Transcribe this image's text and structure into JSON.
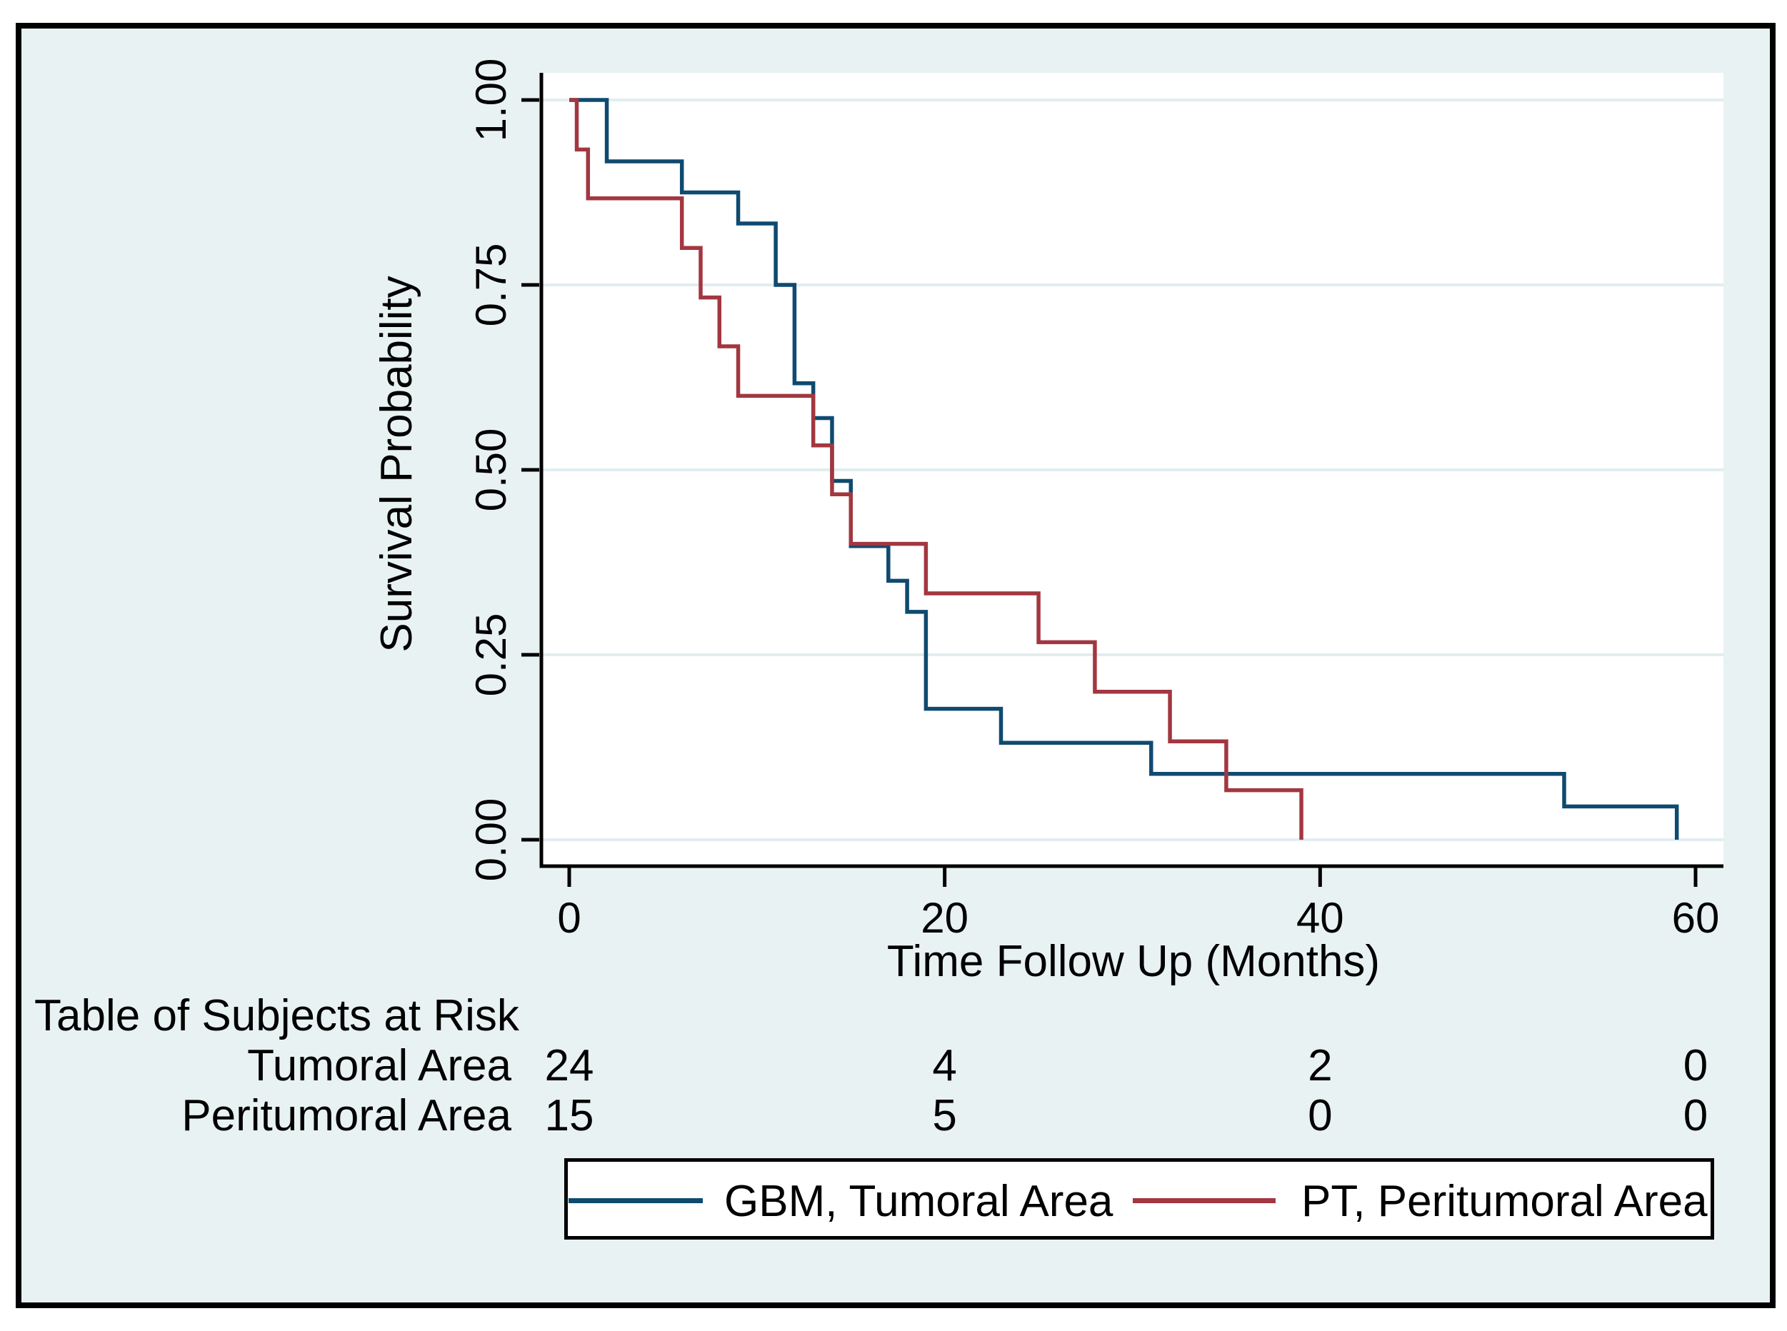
{
  "figure": {
    "background_color": "#E9F2F2",
    "plot_background_color": "#FFFFFF",
    "grid_color": "#E2EDEF",
    "axis_color": "#000000"
  },
  "y_axis": {
    "title": "Survival Probability",
    "tick_labels": [
      "1.00",
      "0.75",
      "0.50",
      "0.25",
      "0.00"
    ],
    "tick_values": [
      1.0,
      0.75,
      0.5,
      0.25,
      0.0
    ]
  },
  "x_axis": {
    "title": "Time Follow Up (Months)",
    "tick_labels": [
      "0",
      "20",
      "40",
      "60"
    ],
    "tick_values": [
      0,
      20,
      40,
      60
    ]
  },
  "risk_table": {
    "title": "Table of Subjects at Risk",
    "rows": [
      {
        "label": "Tumoral Area",
        "counts": [
          "24",
          "4",
          "2",
          "0"
        ]
      },
      {
        "label": "Peritumoral Area",
        "counts": [
          "15",
          "5",
          "0",
          "0"
        ]
      }
    ]
  },
  "legend": {
    "entries": [
      {
        "label": "GBM, Tumoral Area",
        "color": "#0F4A70"
      },
      {
        "label": "PT, Peritumoral Area",
        "color": "#A23740"
      }
    ]
  },
  "chart_data": {
    "type": "line",
    "subtype": "kaplan-meier-step",
    "title": "",
    "xlabel": "Time Follow Up (Months)",
    "ylabel": "Survival Probability",
    "xlim": [
      0,
      62
    ],
    "ylim": [
      0.0,
      1.0
    ],
    "x_ticks": [
      0,
      20,
      40,
      60
    ],
    "y_ticks": [
      0.0,
      0.25,
      0.5,
      0.75,
      1.0
    ],
    "grid": "horizontal",
    "legend_position": "bottom",
    "series": [
      {
        "name": "GBM, Tumoral Area",
        "color": "#0F4A70",
        "n_at_risk": [
          24,
          4,
          2,
          0
        ],
        "steps": [
          [
            0,
            1.0
          ],
          [
            2,
            0.917
          ],
          [
            6,
            0.875
          ],
          [
            9,
            0.833
          ],
          [
            11,
            0.75
          ],
          [
            12,
            0.617
          ],
          [
            13,
            0.57
          ],
          [
            14,
            0.485
          ],
          [
            15,
            0.397
          ],
          [
            17,
            0.35
          ],
          [
            18,
            0.308
          ],
          [
            19,
            0.177
          ],
          [
            23,
            0.131
          ],
          [
            31,
            0.089
          ],
          [
            53,
            0.045
          ],
          [
            59,
            0.0
          ]
        ]
      },
      {
        "name": "PT, Peritumoral Area",
        "color": "#A23740",
        "n_at_risk": [
          15,
          5,
          0,
          0
        ],
        "steps": [
          [
            0,
            1.0
          ],
          [
            0.4,
            0.933
          ],
          [
            1,
            0.867
          ],
          [
            6,
            0.8
          ],
          [
            7,
            0.733
          ],
          [
            8,
            0.667
          ],
          [
            9,
            0.6
          ],
          [
            13,
            0.533
          ],
          [
            14,
            0.467
          ],
          [
            15,
            0.4
          ],
          [
            19,
            0.333
          ],
          [
            25,
            0.267
          ],
          [
            28,
            0.2
          ],
          [
            32,
            0.133
          ],
          [
            35,
            0.067
          ],
          [
            39,
            0.0
          ]
        ]
      }
    ]
  }
}
